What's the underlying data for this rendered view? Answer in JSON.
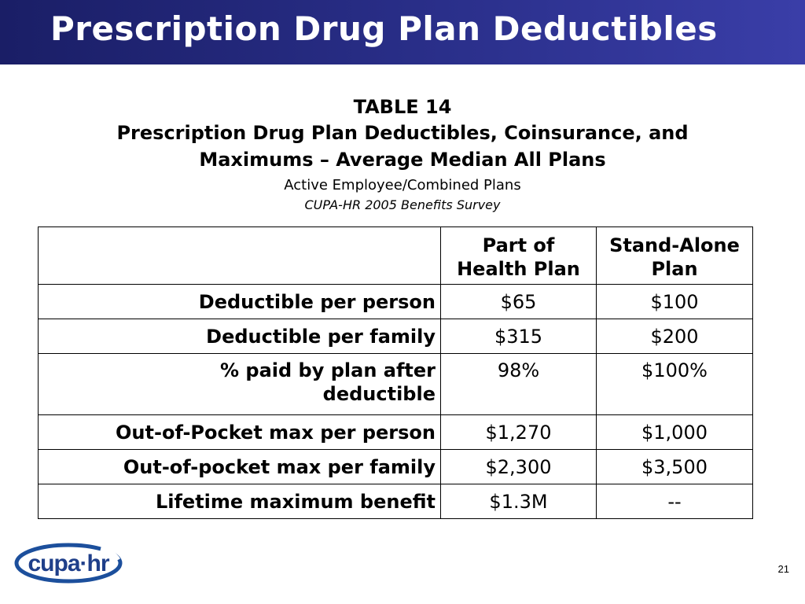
{
  "slide": {
    "title": "Prescription Drug Plan Deductibles",
    "page_number": "21"
  },
  "table_heading": {
    "label": "TABLE 14",
    "title_line1": "Prescription Drug Plan Deductibles, Coinsurance, and",
    "title_line2": "Maximums – Average Median All Plans",
    "subtitle": "Active Employee/Combined Plans",
    "source": "CUPA-HR 2005 Benefits Survey"
  },
  "table": {
    "columns": [
      {
        "line1": "Part of",
        "line2": "Health Plan"
      },
      {
        "line1": "Stand-Alone",
        "line2": "Plan"
      }
    ],
    "rows": [
      {
        "label_line1": "Deductible per person",
        "label_line2": "",
        "health": "$65",
        "standalone": "$100"
      },
      {
        "label_line1": "Deductible per family",
        "label_line2": "",
        "health": "$315",
        "standalone": "$200"
      },
      {
        "label_line1": "% paid by plan after",
        "label_line2": "deductible",
        "health": "98%",
        "standalone": "$100%"
      },
      {
        "label_line1": "Out-of-Pocket max per person",
        "label_line2": "",
        "health": "$1,270",
        "standalone": "$1,000"
      },
      {
        "label_line1": "Out-of-pocket max per family",
        "label_line2": "",
        "health": "$2,300",
        "standalone": "$3,500"
      },
      {
        "label_line1": "Lifetime maximum benefit",
        "label_line2": "",
        "health": "$1.3M",
        "standalone": "--"
      }
    ]
  },
  "logo": {
    "icon": "cupa-hr-logo",
    "text": "cupa·hr",
    "colors": {
      "ring": "#1c4f9c",
      "text": "#1f3f8a"
    }
  }
}
